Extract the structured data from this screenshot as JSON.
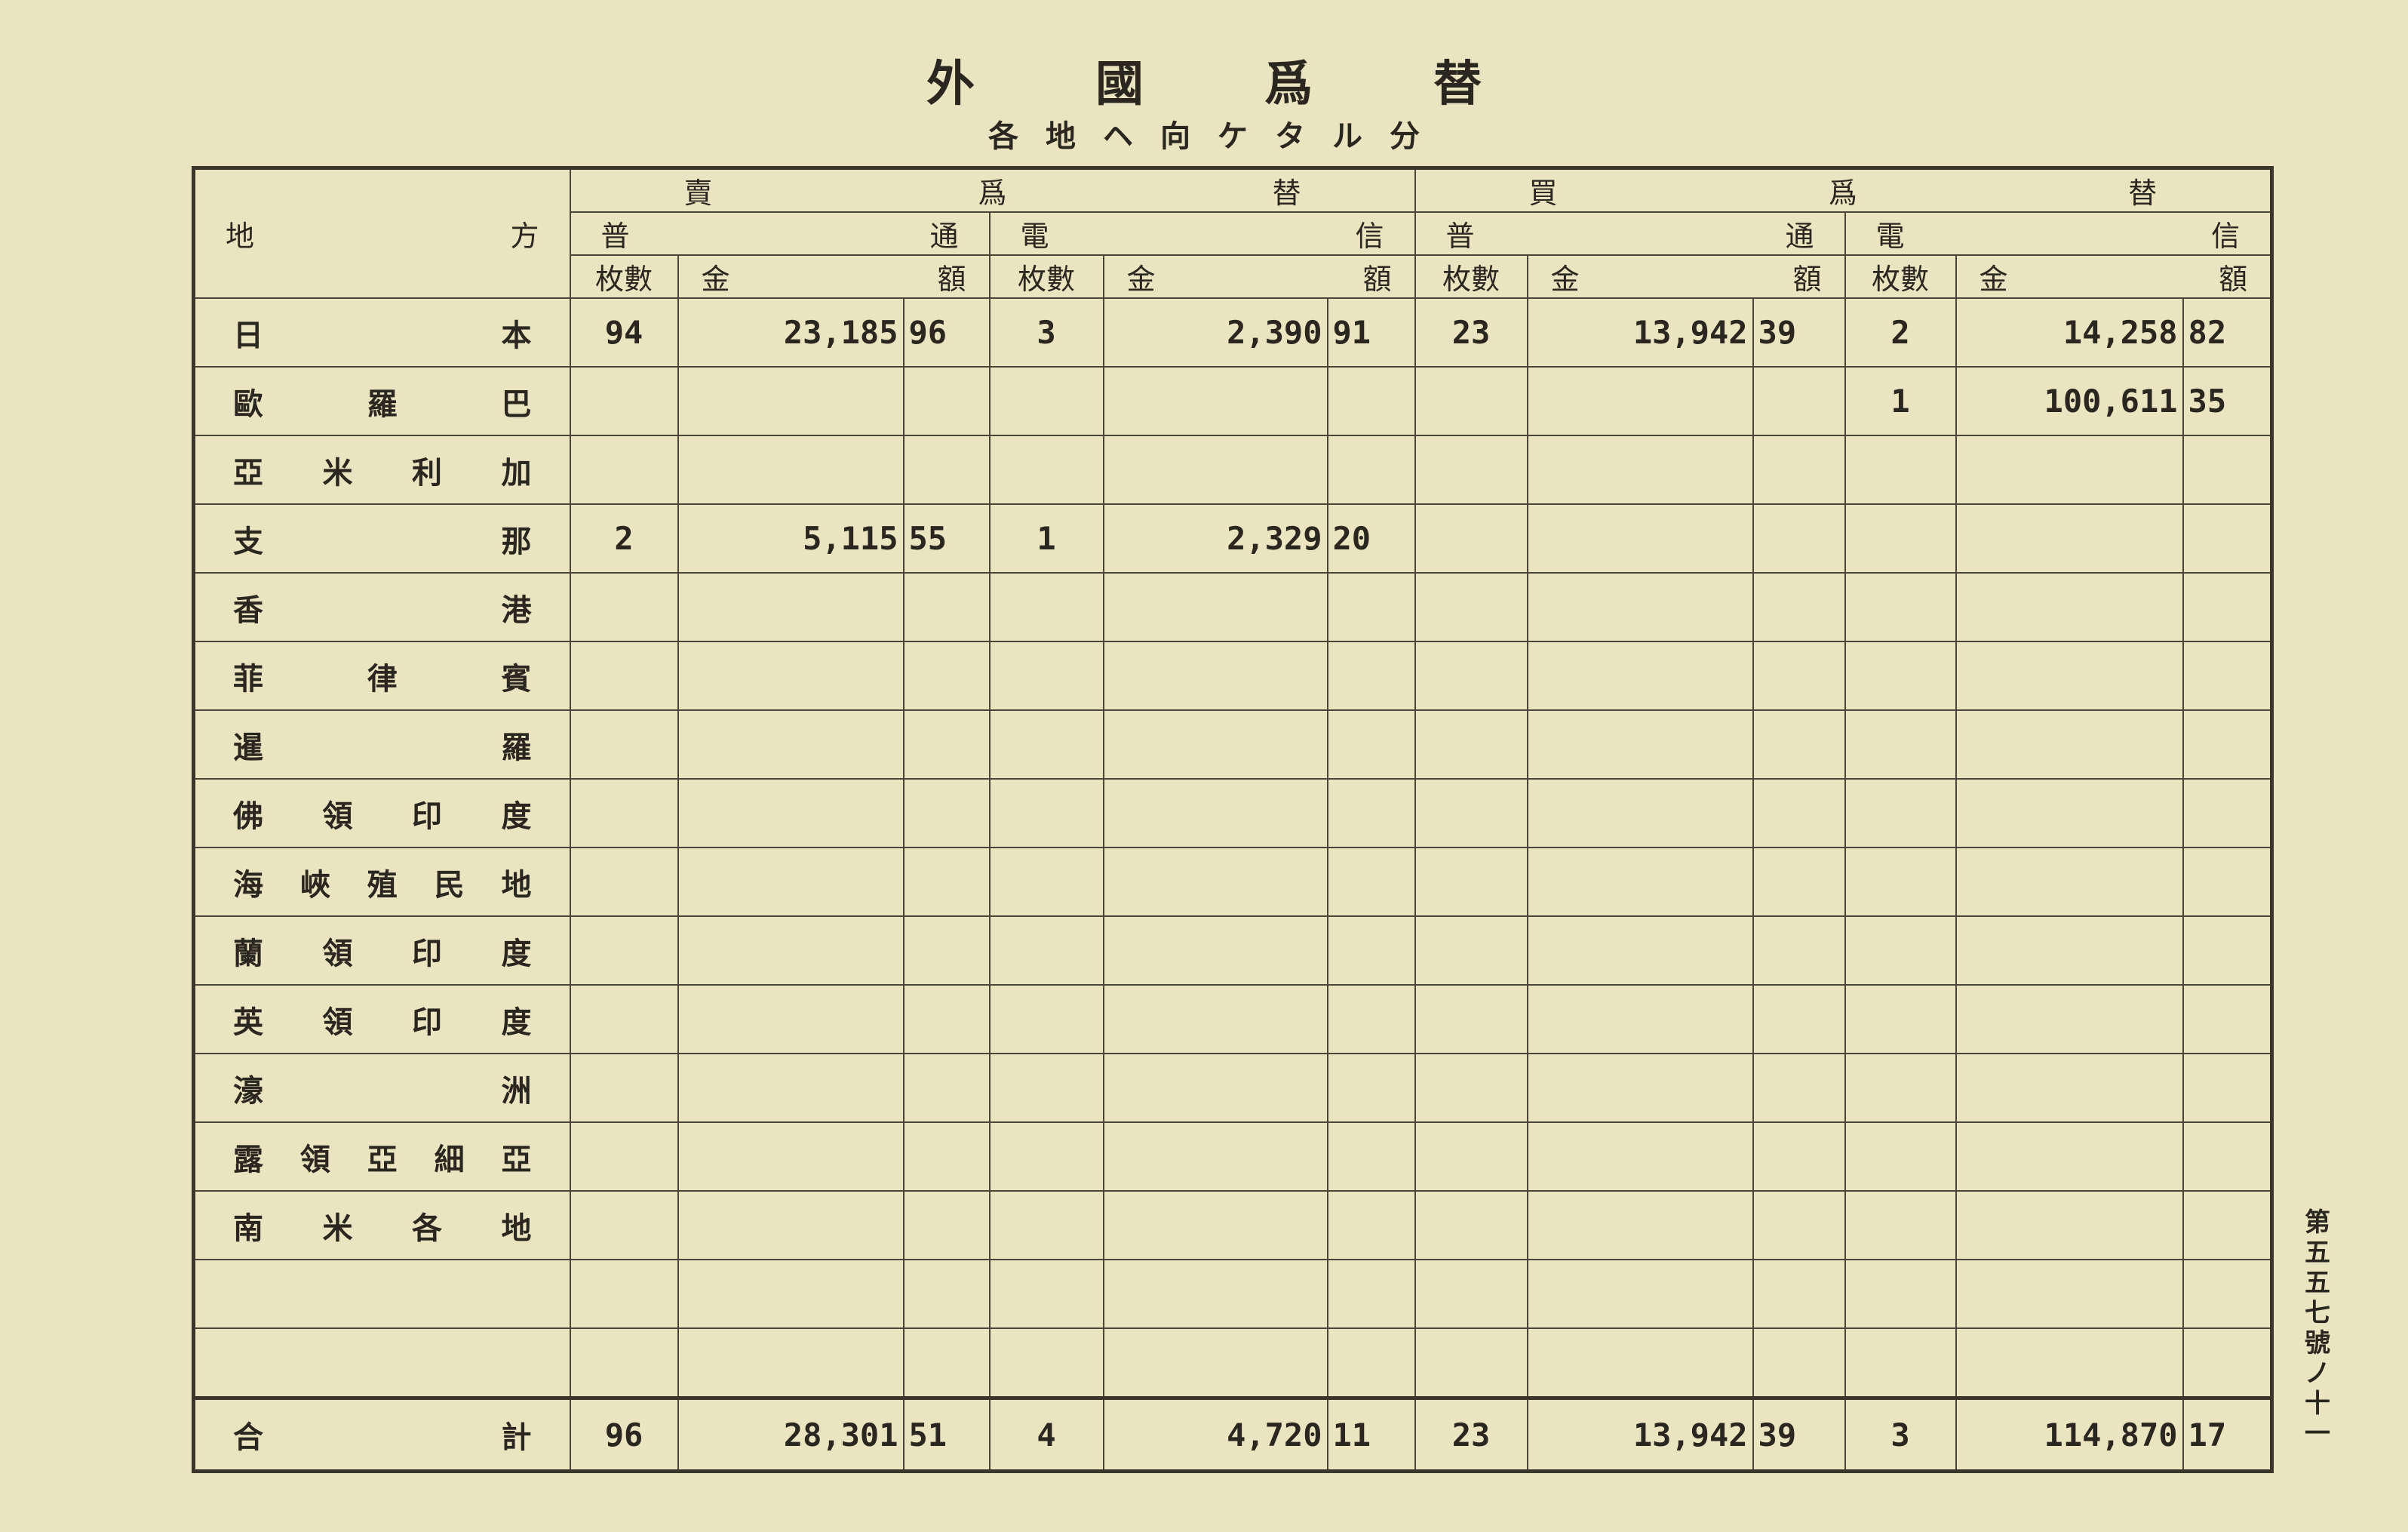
{
  "title": "外國爲替",
  "subtitle": "各地ヘ向ケタル分",
  "side_label": "第五五七號ノ十一",
  "header": {
    "region": "地方",
    "sell": "賣爲替",
    "buy": "買爲替",
    "ordinary": "普通",
    "telegraphic": "電信",
    "count": "枚數",
    "amount": "金額"
  },
  "rows": [
    {
      "region": "日本",
      "v": [
        "94",
        "23,185",
        "96",
        "3",
        "2,390",
        "91",
        "23",
        "13,942",
        "39",
        "2",
        "14,258",
        "82"
      ]
    },
    {
      "region": "歐羅巴",
      "v": [
        "",
        "",
        "",
        "",
        "",
        "",
        "",
        "",
        "",
        "1",
        "100,611",
        "35"
      ]
    },
    {
      "region": "亞米利加",
      "v": [
        "",
        "",
        "",
        "",
        "",
        "",
        "",
        "",
        "",
        "",
        "",
        ""
      ]
    },
    {
      "region": "支那",
      "v": [
        "2",
        "5,115",
        "55",
        "1",
        "2,329",
        "20",
        "",
        "",
        "",
        "",
        "",
        ""
      ]
    },
    {
      "region": "香港",
      "v": [
        "",
        "",
        "",
        "",
        "",
        "",
        "",
        "",
        "",
        "",
        "",
        ""
      ]
    },
    {
      "region": "菲律賓",
      "v": [
        "",
        "",
        "",
        "",
        "",
        "",
        "",
        "",
        "",
        "",
        "",
        ""
      ]
    },
    {
      "region": "暹羅",
      "v": [
        "",
        "",
        "",
        "",
        "",
        "",
        "",
        "",
        "",
        "",
        "",
        ""
      ]
    },
    {
      "region": "佛領印度",
      "v": [
        "",
        "",
        "",
        "",
        "",
        "",
        "",
        "",
        "",
        "",
        "",
        ""
      ]
    },
    {
      "region": "海峽殖民地",
      "v": [
        "",
        "",
        "",
        "",
        "",
        "",
        "",
        "",
        "",
        "",
        "",
        ""
      ]
    },
    {
      "region": "蘭領印度",
      "v": [
        "",
        "",
        "",
        "",
        "",
        "",
        "",
        "",
        "",
        "",
        "",
        ""
      ]
    },
    {
      "region": "英領印度",
      "v": [
        "",
        "",
        "",
        "",
        "",
        "",
        "",
        "",
        "",
        "",
        "",
        ""
      ]
    },
    {
      "region": "濠洲",
      "v": [
        "",
        "",
        "",
        "",
        "",
        "",
        "",
        "",
        "",
        "",
        "",
        ""
      ]
    },
    {
      "region": "露領亞細亞",
      "v": [
        "",
        "",
        "",
        "",
        "",
        "",
        "",
        "",
        "",
        "",
        "",
        ""
      ]
    },
    {
      "region": "南米各地",
      "v": [
        "",
        "",
        "",
        "",
        "",
        "",
        "",
        "",
        "",
        "",
        "",
        ""
      ]
    },
    {
      "region": "",
      "v": [
        "",
        "",
        "",
        "",
        "",
        "",
        "",
        "",
        "",
        "",
        "",
        ""
      ]
    },
    {
      "region": "",
      "v": [
        "",
        "",
        "",
        "",
        "",
        "",
        "",
        "",
        "",
        "",
        "",
        ""
      ]
    }
  ],
  "total": {
    "region": "合計",
    "v": [
      "96",
      "28,301",
      "51",
      "4",
      "4,720",
      "11",
      "23",
      "13,942",
      "39",
      "3",
      "114,870",
      "17"
    ]
  }
}
